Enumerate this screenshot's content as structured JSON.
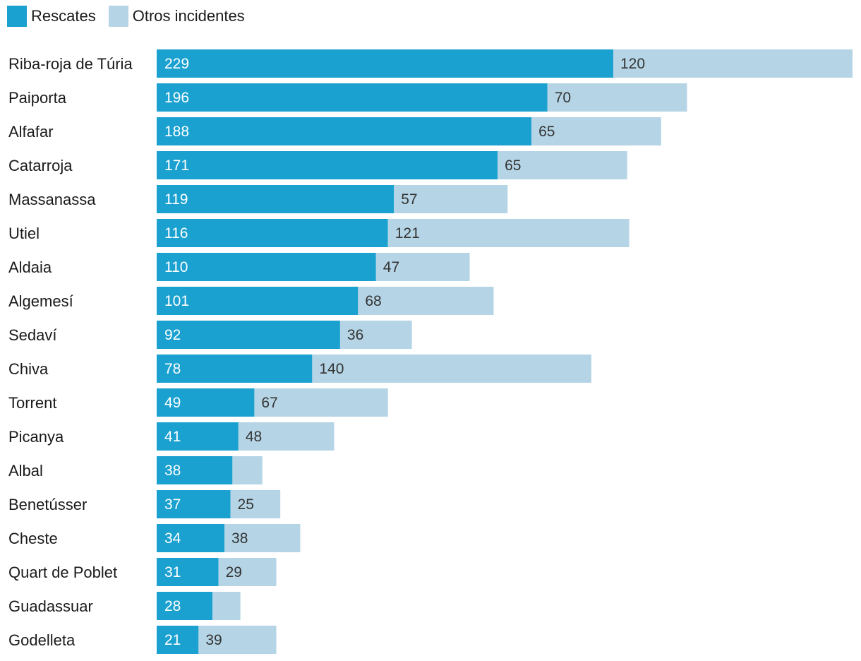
{
  "colors": {
    "rescates": "#1aa1d0",
    "otros": "#b5d5e6",
    "label_on_dark": "#ffffff",
    "label_on_light": "#333333"
  },
  "legend": [
    {
      "name": "Rescates",
      "color": "#1aa1d0"
    },
    {
      "name": "Otros incidentes",
      "color": "#b5d5e6"
    }
  ],
  "chart_data": {
    "type": "bar",
    "orientation": "horizontal",
    "stacked": true,
    "title": "",
    "xlabel": "",
    "ylabel": "",
    "legend_position": "top-left",
    "grid": false,
    "categories": [
      "Riba-roja de Túria",
      "Paiporta",
      "Alfafar",
      "Catarroja",
      "Massanassa",
      "Utiel",
      "Aldaia",
      "Algemesí",
      "Sedaví",
      "Chiva",
      "Torrent",
      "Picanya",
      "Albal",
      "Benetússer",
      "Cheste",
      "Quart de Poblet",
      "Guadassuar",
      "Godelleta"
    ],
    "series": [
      {
        "name": "Rescates",
        "values": [
          229,
          196,
          188,
          171,
          119,
          116,
          110,
          101,
          92,
          78,
          49,
          41,
          38,
          37,
          34,
          31,
          28,
          21
        ]
      },
      {
        "name": "Otros incidentes",
        "values": [
          120,
          70,
          65,
          65,
          57,
          121,
          47,
          68,
          36,
          140,
          67,
          48,
          15,
          25,
          38,
          29,
          14,
          39
        ],
        "hidden_labels": [
          12,
          16
        ]
      }
    ],
    "xlim": [
      0,
      349
    ]
  }
}
